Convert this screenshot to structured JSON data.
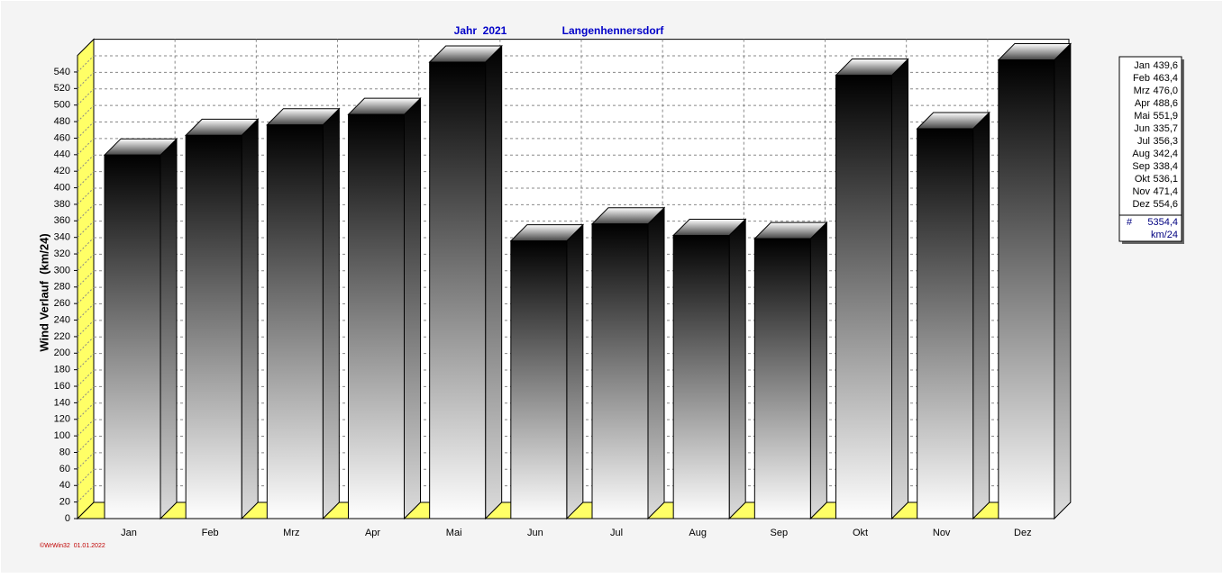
{
  "chart_data": {
    "type": "bar3d",
    "title": "Jahr  2021",
    "subtitle": "Langenhennersdorf",
    "y_label": "Wind Verlauf  (km/24)",
    "footer": "©WrWin32  01.01.2022",
    "categories": [
      "Jan",
      "Feb",
      "Mrz",
      "Apr",
      "Mai",
      "Jun",
      "Jul",
      "Aug",
      "Sep",
      "Okt",
      "Nov",
      "Dez"
    ],
    "values": [
      439.6,
      463.4,
      476.0,
      488.6,
      551.9,
      335.7,
      356.3,
      342.4,
      338.4,
      536.1,
      471.4,
      554.6
    ],
    "value_labels": [
      "439,6",
      "463,4",
      "476,0",
      "488,6",
      "551,9",
      "335,7",
      "356,3",
      "342,4",
      "338,4",
      "536,1",
      "471,4",
      "554,6"
    ],
    "total": {
      "value": 5354.4,
      "label": "5354,4"
    },
    "total_symbol": "#",
    "total_unit": "km/24",
    "ylim": [
      0,
      560
    ],
    "yticks": [
      0,
      20,
      40,
      60,
      80,
      100,
      120,
      140,
      160,
      180,
      200,
      220,
      240,
      260,
      280,
      300,
      320,
      340,
      360,
      380,
      400,
      420,
      440,
      460,
      480,
      500,
      520,
      540
    ],
    "grid": true,
    "wall_color": "#ffff66"
  }
}
